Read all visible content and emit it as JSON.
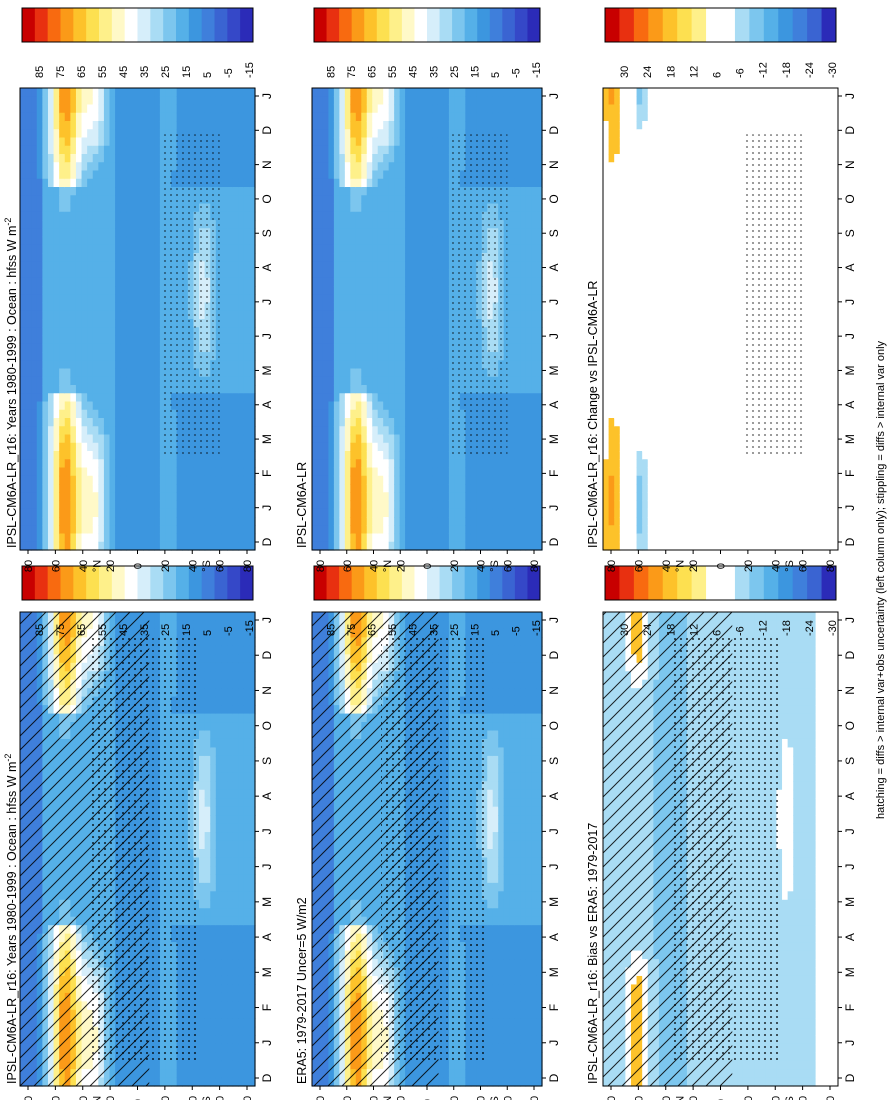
{
  "figure": {
    "footer": "hatching = diffs > internal var+obs uncertainty (left column only); stippling = diffs > internal var only"
  },
  "colors": {
    "abs_scale": [
      "#c80000",
      "#e83010",
      "#f86a10",
      "#fb9a18",
      "#fdc22a",
      "#fde050",
      "#fef08a",
      "#fff9c8",
      "#ffffff",
      "#d6eefa",
      "#a9dcf4",
      "#7cc6ee",
      "#55b0e8",
      "#3c96df",
      "#3f7fdb",
      "#3a64d2",
      "#3548c8",
      "#2b2bb8"
    ],
    "diff_scale": [
      "#c80000",
      "#e83010",
      "#f86a10",
      "#fb9a18",
      "#fdc22a",
      "#fde050",
      "#fef08a",
      "#ffffff",
      "#ffffff",
      "#a9dcf4",
      "#7cc6ee",
      "#55b0e8",
      "#3c96df",
      "#3f7fdb",
      "#3a64d2",
      "#2b2bb8"
    ]
  },
  "chart_data": [
    {
      "id": "model_left",
      "type": "heatmap",
      "title": "IPSL-CM6A-LR_r16: Years 1980-1999 : Ocean : hfss W m",
      "title_sup": "-2",
      "x_ticks": [
        "D",
        "J",
        "F",
        "M",
        "A",
        "M",
        "J",
        "J",
        "A",
        "S",
        "O",
        "N",
        "D",
        "J"
      ],
      "y_ticks": [
        "80",
        "60",
        "40",
        "20",
        "0",
        "20",
        "40",
        "60",
        "80"
      ],
      "y_ticks_rotated": [
        "°N",
        "°S"
      ],
      "colorbar_labels": [
        "85",
        "75",
        "65",
        "55",
        "45",
        "35",
        "25",
        "15",
        "5",
        "-5",
        "-15"
      ],
      "x_months": [
        "D",
        "J",
        "F",
        "M",
        "A",
        "M",
        "J",
        "J",
        "A",
        "S",
        "O",
        "N",
        "D",
        "J"
      ],
      "lat_range": [
        -85,
        85
      ],
      "features": {
        "north_peak_lat": [
          40,
          62
        ],
        "north_peak_value": 65,
        "south_max_lat": 50,
        "south_max_value": 45,
        "baseline": 12
      },
      "overlay": "hatching+stippling"
    },
    {
      "id": "model_right",
      "type": "heatmap",
      "title": "IPSL-CM6A-LR_r16: Years 1980-1999 : Ocean : hfss W m",
      "title_sup": "-2",
      "x_ticks": [
        "D",
        "J",
        "F",
        "M",
        "A",
        "M",
        "J",
        "J",
        "A",
        "S",
        "O",
        "N",
        "D",
        "J"
      ],
      "y_ticks": [
        "80",
        "60",
        "40",
        "20",
        "0",
        "20",
        "40",
        "60",
        "80"
      ],
      "y_ticks_rotated": [
        "°N",
        "°S"
      ],
      "colorbar_labels": [
        "85",
        "75",
        "65",
        "55",
        "45",
        "35",
        "25",
        "15",
        "5",
        "-5",
        "-15"
      ],
      "lat_range": [
        -85,
        85
      ],
      "overlay": "dots"
    },
    {
      "id": "era5",
      "type": "heatmap",
      "title": "ERA5: 1979-2017 Uncer=5 W/m2",
      "x_ticks": [
        "D",
        "J",
        "F",
        "M",
        "A",
        "M",
        "J",
        "J",
        "A",
        "S",
        "O",
        "N",
        "D",
        "J"
      ],
      "y_ticks": [
        "80",
        "60",
        "40",
        "20",
        "0",
        "20",
        "40",
        "60",
        "80"
      ],
      "y_ticks_rotated": [
        "°N",
        "°S"
      ],
      "colorbar_labels": [
        "85",
        "75",
        "65",
        "55",
        "45",
        "35",
        "25",
        "15",
        "5",
        "-5",
        "-15"
      ],
      "lat_range": [
        -85,
        85
      ],
      "overlay": "hatching+stippling"
    },
    {
      "id": "ipsl",
      "type": "heatmap",
      "title": "IPSL-CM6A-LR",
      "x_ticks": [
        "D",
        "J",
        "F",
        "M",
        "A",
        "M",
        "J",
        "J",
        "A",
        "S",
        "O",
        "N",
        "D",
        "J"
      ],
      "y_ticks": [
        "80",
        "60",
        "40",
        "20",
        "0",
        "20",
        "40",
        "60",
        "80"
      ],
      "y_ticks_rotated": [
        "°N",
        "°S"
      ],
      "colorbar_labels": [
        "85",
        "75",
        "65",
        "55",
        "45",
        "35",
        "25",
        "15",
        "5",
        "-5",
        "-15"
      ],
      "lat_range": [
        -85,
        85
      ],
      "overlay": "dots"
    },
    {
      "id": "bias",
      "type": "heatmap",
      "title": "IPSL-CM6A-LR_r16: Bias vs ERA5: 1979-2017",
      "x_ticks": [
        "D",
        "J",
        "F",
        "M",
        "A",
        "M",
        "J",
        "J",
        "A",
        "S",
        "O",
        "N",
        "D",
        "J"
      ],
      "y_ticks": [
        "80",
        "60",
        "40",
        "20",
        "0",
        "20",
        "40",
        "60",
        "80"
      ],
      "y_ticks_rotated": [
        "°N",
        "°S"
      ],
      "colorbar_labels": [
        "30",
        "24",
        "18",
        "12",
        "6",
        "-6",
        "-12",
        "-18",
        "-24",
        "-30"
      ],
      "lat_range": [
        -85,
        85
      ],
      "overlay": "hatching+stippling"
    },
    {
      "id": "change",
      "type": "heatmap",
      "title": "IPSL-CM6A-LR_r16: Change vs IPSL-CM6A-LR",
      "x_ticks": [
        "D",
        "J",
        "F",
        "M",
        "A",
        "M",
        "J",
        "J",
        "A",
        "S",
        "O",
        "N",
        "D",
        "J"
      ],
      "y_ticks": [
        "80",
        "60",
        "40",
        "20",
        "0",
        "20",
        "40",
        "60",
        "80"
      ],
      "y_ticks_rotated": [
        "°N",
        "°S"
      ],
      "colorbar_labels": [
        "30",
        "24",
        "18",
        "12",
        "6",
        "-6",
        "-12",
        "-18",
        "-24",
        "-30"
      ],
      "lat_range": [
        -85,
        85
      ],
      "overlay": "dots"
    }
  ]
}
